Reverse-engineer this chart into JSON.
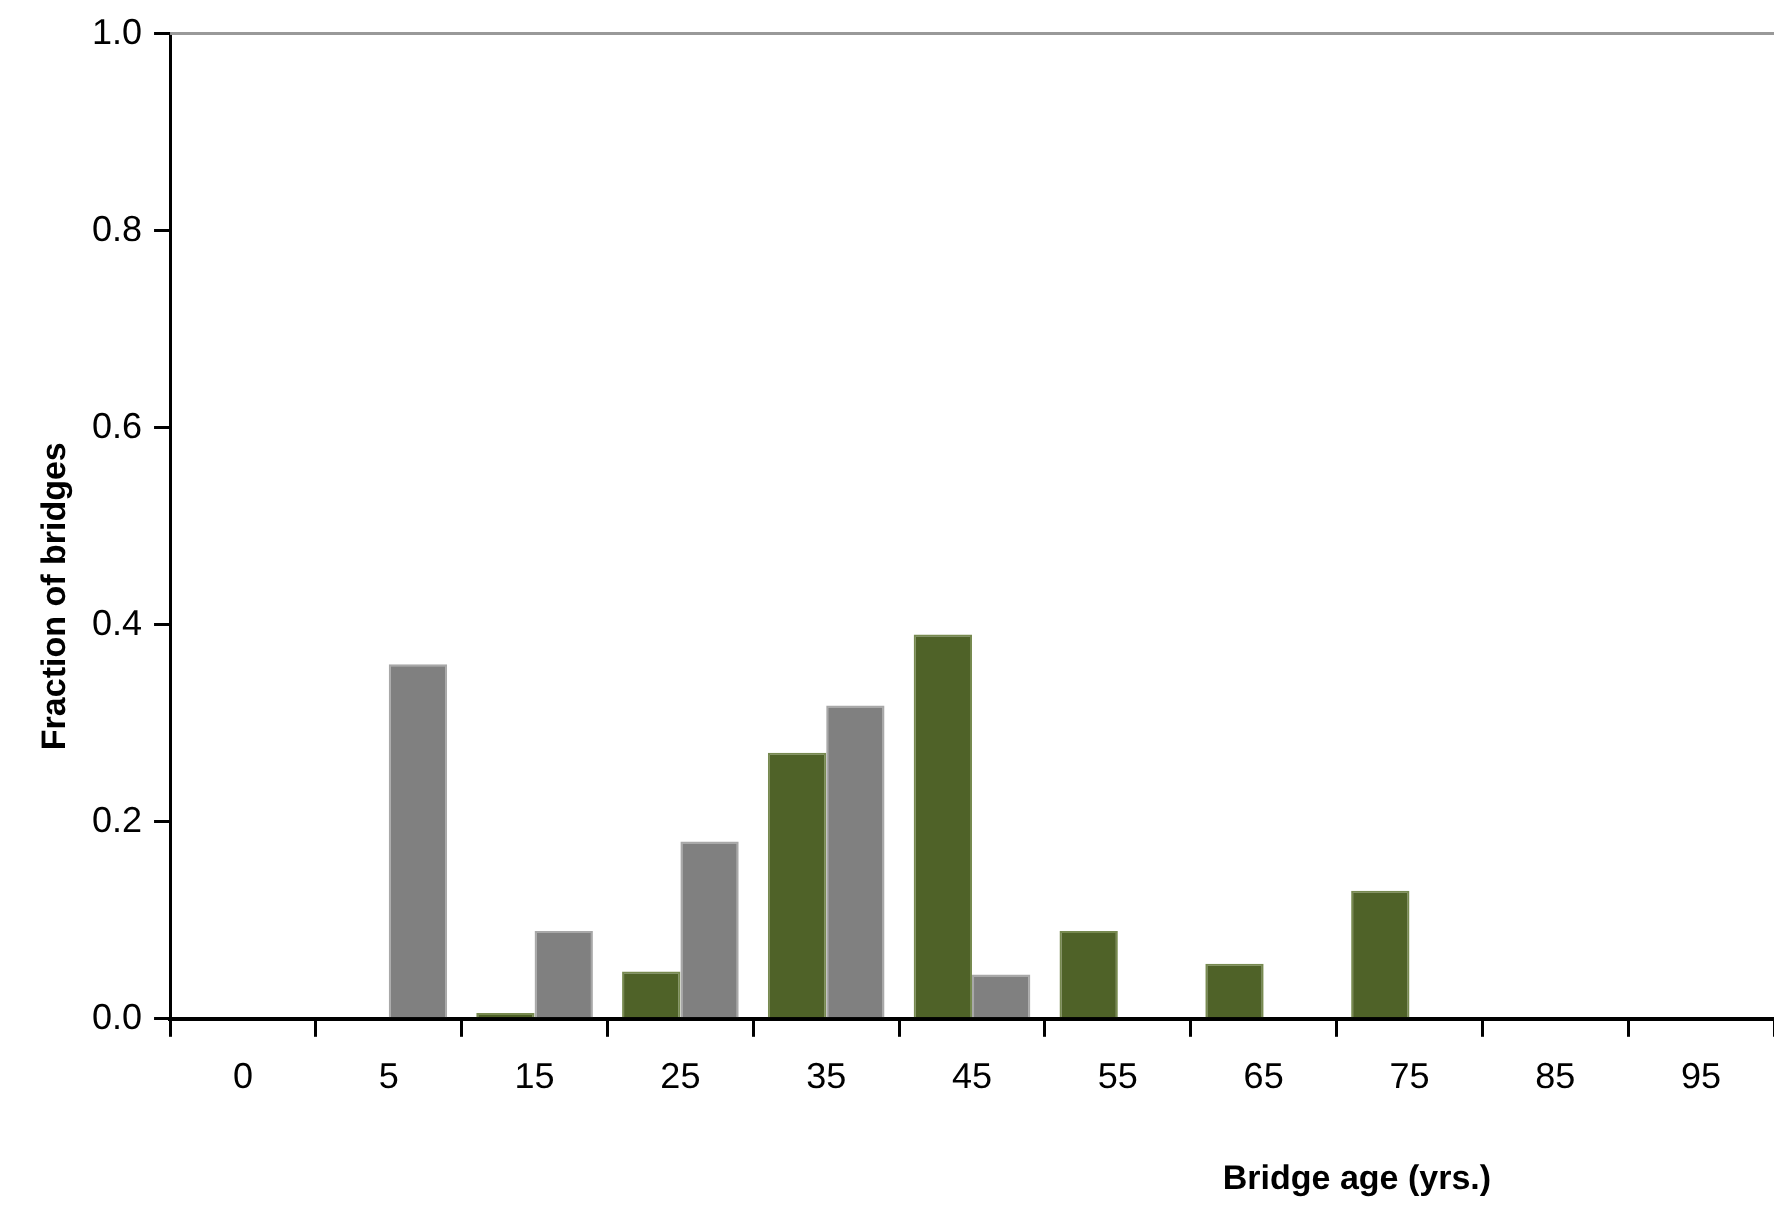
{
  "chart_data": {
    "type": "bar",
    "xlabel": "Bridge age (yrs.)",
    "ylabel": "Fraction of bridges",
    "categories": [
      "0",
      "5",
      "15",
      "25",
      "35",
      "45",
      "55",
      "65",
      "75",
      "85",
      "95"
    ],
    "series": [
      {
        "color": "#4f6228",
        "values": [
          0,
          0,
          0.006,
          0.048,
          0.27,
          0.39,
          0.089,
          0.056,
          0.13,
          0,
          0
        ]
      },
      {
        "color": "#808080",
        "values": [
          0,
          0.36,
          0.089,
          0.18,
          0.318,
          0.045,
          0,
          0,
          0,
          0,
          0
        ]
      }
    ],
    "ylim": [
      0,
      1.0
    ],
    "yticks": [
      {
        "value": 0,
        "label": "0.0"
      },
      {
        "value": 0.2,
        "label": "0.2"
      },
      {
        "value": 0.4,
        "label": "0.4"
      },
      {
        "value": 0.6,
        "label": "0.6"
      },
      {
        "value": 0.8,
        "label": "0.8"
      },
      {
        "value": 1.0,
        "label": "1.0"
      }
    ],
    "grid": false,
    "legend": false
  }
}
